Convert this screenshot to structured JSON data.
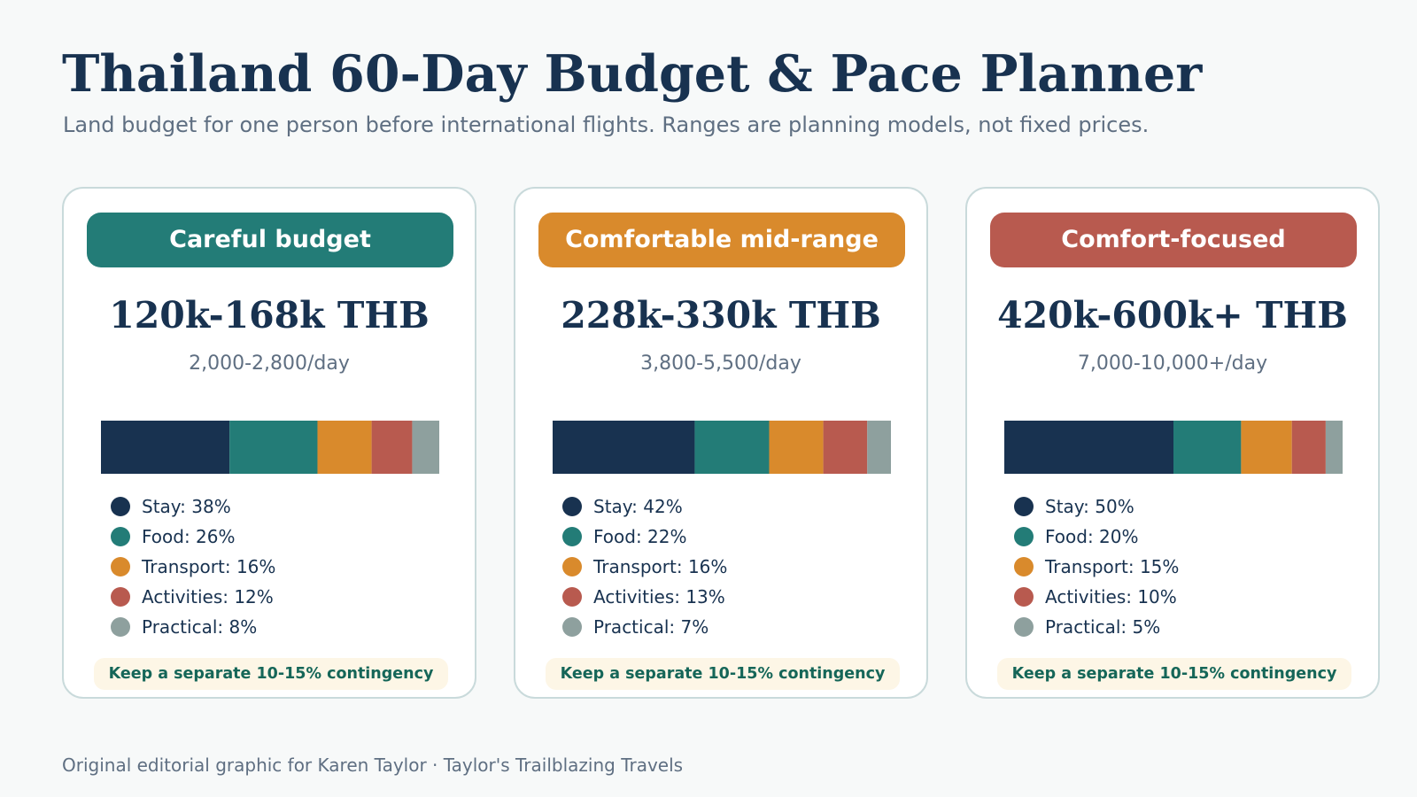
{
  "title": "Thailand 60-Day Budget & Pace Planner",
  "subtitle": "Land budget for one person before international flights. Ranges are planning models, not fixed prices.",
  "footer": "Original editorial graphic for Karen Taylor · Taylor's Trailblazing Travels",
  "colors": {
    "Stay": "#183250",
    "Food": "#237c77",
    "Transport": "#d98a2c",
    "Activities": "#b85a4f",
    "Practical": "#8ea09e"
  },
  "cards": [
    {
      "tier": "Careful budget",
      "tier_color": "#237c77",
      "total_range": "120k-168k THB",
      "daily_range": "2,000-2,800/day",
      "legend": [
        "Stay: 38%",
        "Food: 26%",
        "Transport: 16%",
        "Activities: 12%",
        "Practical: 8%"
      ],
      "contingency": "Keep a separate 10-15% contingency"
    },
    {
      "tier": "Comfortable mid-range",
      "tier_color": "#d98a2c",
      "total_range": "228k-330k THB",
      "daily_range": "3,800-5,500/day",
      "legend": [
        "Stay: 42%",
        "Food: 22%",
        "Transport: 16%",
        "Activities: 13%",
        "Practical: 7%"
      ],
      "contingency": "Keep a separate 10-15% contingency"
    },
    {
      "tier": "Comfort-focused",
      "tier_color": "#b85a4f",
      "total_range": "420k-600k+ THB",
      "daily_range": "7,000-10,000+/day",
      "legend": [
        "Stay: 50%",
        "Food: 20%",
        "Transport: 15%",
        "Activities: 10%",
        "Practical: 5%"
      ],
      "contingency": "Keep a separate 10-15% contingency"
    }
  ],
  "chart_data": [
    {
      "type": "bar",
      "stacked": true,
      "orientation": "horizontal",
      "categories": [
        "Stay",
        "Food",
        "Transport",
        "Activities",
        "Practical"
      ],
      "values": [
        38,
        26,
        16,
        12,
        8
      ],
      "unit": "%"
    },
    {
      "type": "bar",
      "stacked": true,
      "orientation": "horizontal",
      "categories": [
        "Stay",
        "Food",
        "Transport",
        "Activities",
        "Practical"
      ],
      "values": [
        42,
        22,
        16,
        13,
        7
      ],
      "unit": "%"
    },
    {
      "type": "bar",
      "stacked": true,
      "orientation": "horizontal",
      "categories": [
        "Stay",
        "Food",
        "Transport",
        "Activities",
        "Practical"
      ],
      "values": [
        50,
        20,
        15,
        10,
        5
      ],
      "unit": "%"
    }
  ]
}
